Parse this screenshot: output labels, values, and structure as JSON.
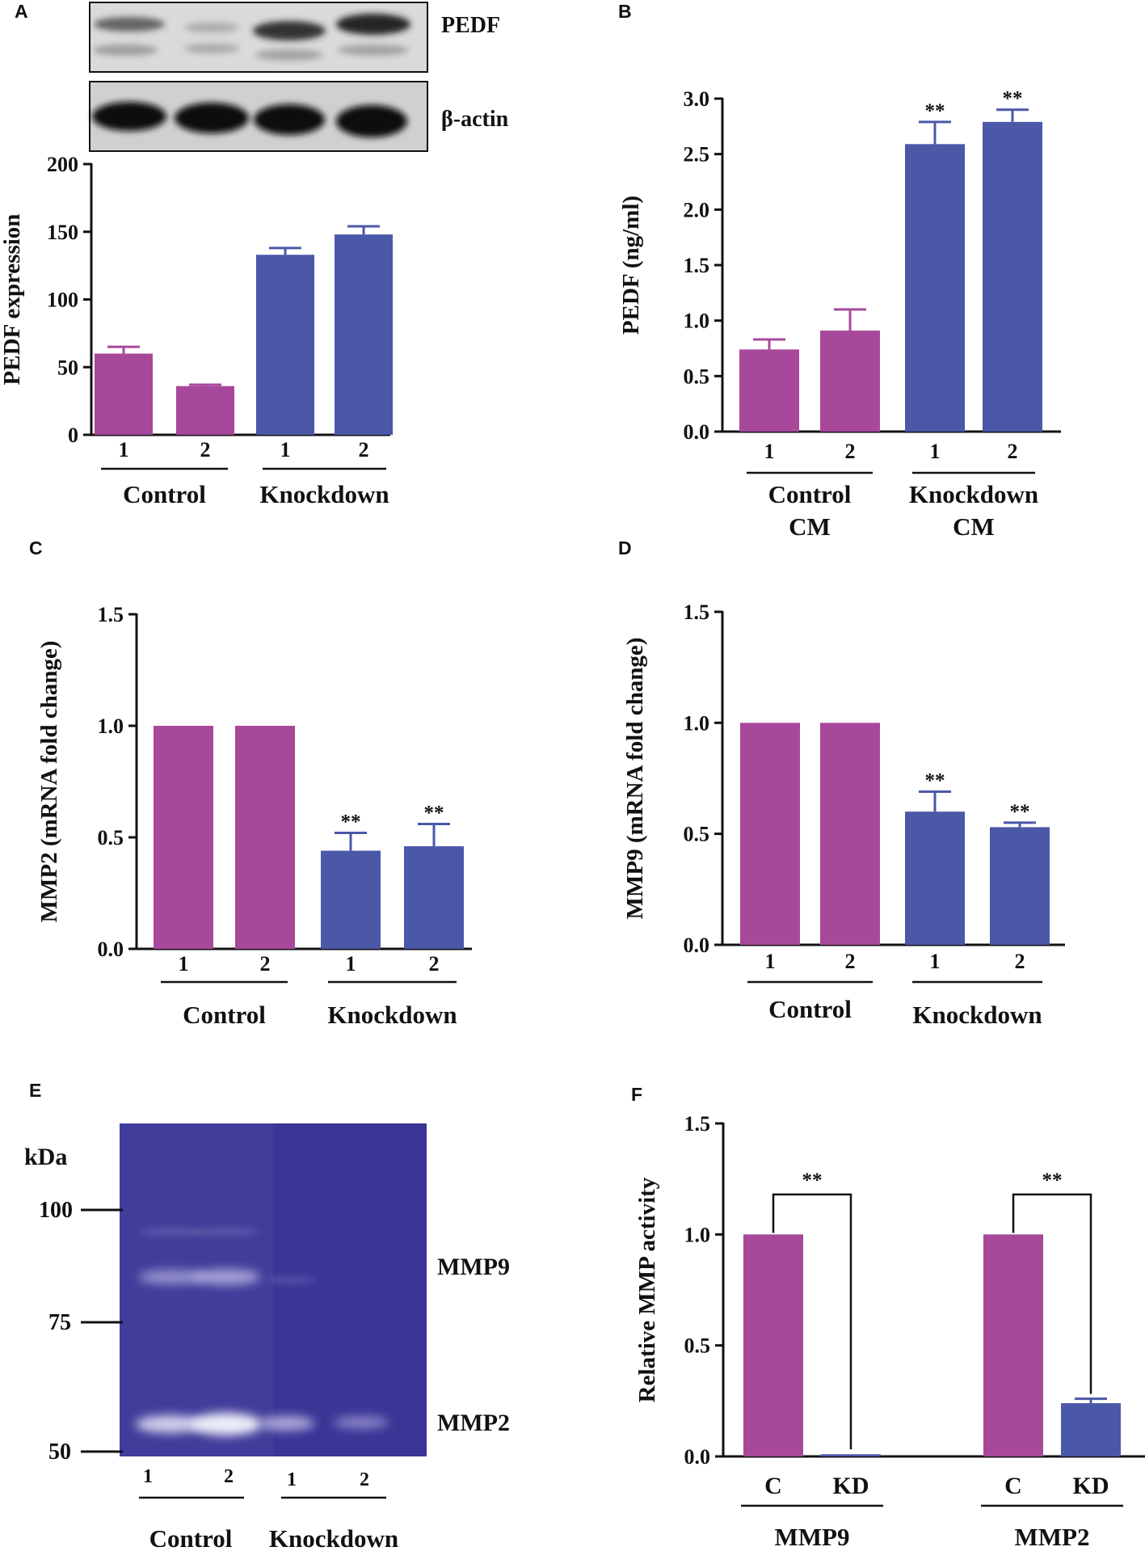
{
  "colors": {
    "control": "#a7489b",
    "knockdown": "#4b58a8",
    "axis": "#111111",
    "blot_background": "#d9d9d9",
    "zymogram_background": "#3b3596"
  },
  "panel_A": {
    "label": "A",
    "blot_labels": [
      "PEDF",
      "β-actin"
    ],
    "chart_data": {
      "type": "bar",
      "ylabel": "PEDF expression",
      "ylim": [
        0,
        200
      ],
      "yticks": [
        0,
        50,
        100,
        150,
        200
      ],
      "categories": [
        "1",
        "2",
        "1",
        "2"
      ],
      "groups": [
        {
          "name": "Control",
          "categories": [
            "1",
            "2"
          ],
          "values": [
            60,
            36
          ],
          "errors": [
            5,
            1
          ]
        },
        {
          "name": "Knockdown",
          "categories": [
            "1",
            "2"
          ],
          "values": [
            133,
            148
          ],
          "errors": [
            5,
            6
          ]
        }
      ]
    }
  },
  "panel_B": {
    "label": "B",
    "chart_data": {
      "type": "bar",
      "ylabel": "PEDF (ng/ml)",
      "ylim": [
        0,
        3.0
      ],
      "yticks": [
        "0.0",
        "0.5",
        "1.0",
        "1.5",
        "2.0",
        "2.5",
        "3.0"
      ],
      "categories": [
        "1",
        "2",
        "1",
        "2"
      ],
      "groups": [
        {
          "name": "Control CM",
          "categories": [
            "1",
            "2"
          ],
          "values": [
            0.74,
            0.91
          ],
          "errors": [
            0.09,
            0.19
          ],
          "significance": [
            "",
            ""
          ]
        },
        {
          "name": "Knockdown CM",
          "categories": [
            "1",
            "2"
          ],
          "values": [
            2.59,
            2.79
          ],
          "errors": [
            0.2,
            0.11
          ],
          "significance": [
            "**",
            "**"
          ]
        }
      ]
    }
  },
  "panel_C": {
    "label": "C",
    "chart_data": {
      "type": "bar",
      "ylabel": "MMP2 (mRNA fold change)",
      "ylim": [
        0,
        1.5
      ],
      "yticks": [
        "0.0",
        "0.5",
        "1.0",
        "1.5"
      ],
      "categories": [
        "1",
        "2",
        "1",
        "2"
      ],
      "groups": [
        {
          "name": "Control",
          "categories": [
            "1",
            "2"
          ],
          "values": [
            1.0,
            1.0
          ],
          "errors": [
            0,
            0
          ],
          "significance": [
            "",
            ""
          ]
        },
        {
          "name": "Knockdown",
          "categories": [
            "1",
            "2"
          ],
          "values": [
            0.44,
            0.46
          ],
          "errors": [
            0.08,
            0.1
          ],
          "significance": [
            "**",
            "**"
          ]
        }
      ]
    }
  },
  "panel_D": {
    "label": "D",
    "chart_data": {
      "type": "bar",
      "ylabel": "MMP9 (mRNA fold change)",
      "ylim": [
        0,
        1.5
      ],
      "yticks": [
        "0.0",
        "0.5",
        "1.0",
        "1.5"
      ],
      "categories": [
        "1",
        "2",
        "1",
        "2"
      ],
      "groups": [
        {
          "name": "Control",
          "categories": [
            "1",
            "2"
          ],
          "values": [
            1.0,
            1.0
          ],
          "errors": [
            0,
            0
          ],
          "significance": [
            "",
            ""
          ]
        },
        {
          "name": "Knockdown",
          "categories": [
            "1",
            "2"
          ],
          "values": [
            0.6,
            0.53
          ],
          "errors": [
            0.09,
            0.02
          ],
          "significance": [
            "**",
            "**"
          ]
        }
      ]
    }
  },
  "panel_E": {
    "label": "E",
    "marker_unit": "kDa",
    "markers": [
      "100",
      "75",
      "50"
    ],
    "bands": [
      "MMP9",
      "MMP2"
    ],
    "lanes": [
      "1",
      "2",
      "1",
      "2"
    ],
    "groups": [
      "Control",
      "Knockdown"
    ]
  },
  "panel_F": {
    "label": "F",
    "chart_data": {
      "type": "bar",
      "ylabel": "Relative MMP activity",
      "ylim": [
        0,
        1.5
      ],
      "yticks": [
        "0.0",
        "0.5",
        "1.0",
        "1.5"
      ],
      "groups": [
        {
          "name": "MMP9",
          "categories": [
            "C",
            "KD"
          ],
          "values": [
            1.0,
            0.01
          ],
          "errors": [
            0,
            0
          ],
          "significance": "**"
        },
        {
          "name": "MMP2",
          "categories": [
            "C",
            "KD"
          ],
          "values": [
            1.0,
            0.24
          ],
          "errors": [
            0,
            0.02
          ],
          "significance": "**"
        }
      ]
    }
  }
}
